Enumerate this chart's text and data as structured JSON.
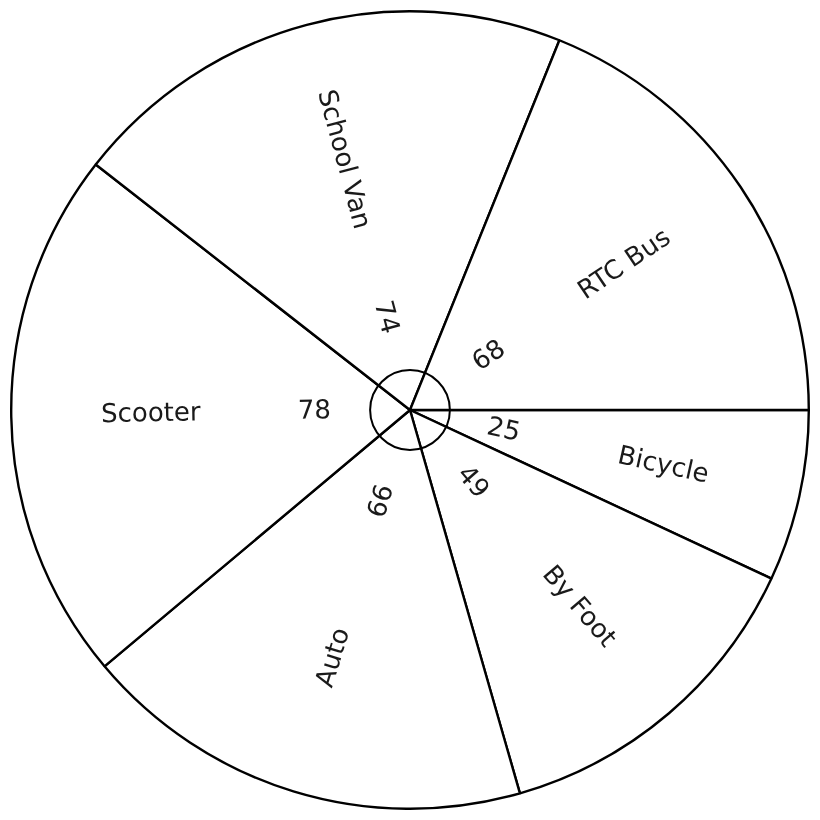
{
  "chart_data": {
    "type": "pie",
    "categories": [
      "Bicycle",
      "By Foot",
      "Auto",
      "Scooter",
      "School Van",
      "RTC Bus"
    ],
    "values": [
      25,
      49,
      66,
      78,
      74,
      68
    ],
    "colors": [
      "#ffffff",
      "#ffffff",
      "#ffffff",
      "#ffffff",
      "#ffffff",
      "#ffffff"
    ],
    "data_labels": true,
    "legend": false
  }
}
